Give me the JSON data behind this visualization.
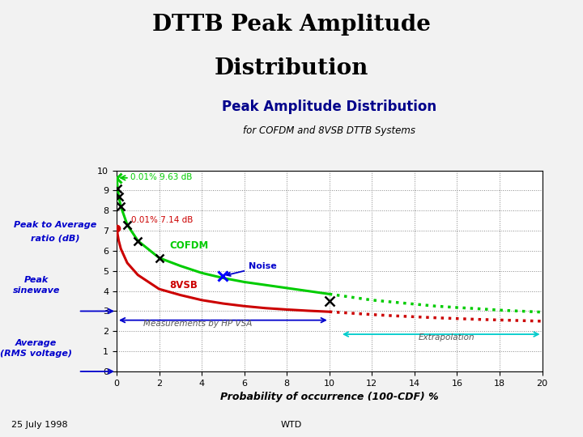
{
  "title": "Peak Amplitude Distribution",
  "subtitle": "for COFDM and 8VSB DTTB Systems",
  "xlabel": "Probability of occurrence (100-CDF) %",
  "xlim": [
    0,
    20
  ],
  "ylim": [
    0,
    10
  ],
  "xticks": [
    0,
    2,
    4,
    6,
    8,
    10,
    12,
    14,
    16,
    18,
    20
  ],
  "yticks": [
    0,
    1,
    2,
    3,
    4,
    5,
    6,
    7,
    8,
    9,
    10
  ],
  "title_color": "#00008B",
  "cofdm_color": "#00CC00",
  "vsb8_color": "#CC0000",
  "cofdm_solid_x": [
    0.01,
    0.05,
    0.1,
    0.2,
    0.5,
    1.0,
    2.0,
    3.0,
    4.0,
    5.0,
    6.0,
    7.0,
    8.0,
    9.0,
    10.0
  ],
  "cofdm_solid_y": [
    9.63,
    9.1,
    8.7,
    8.2,
    7.3,
    6.5,
    5.65,
    5.25,
    4.9,
    4.65,
    4.45,
    4.3,
    4.15,
    4.0,
    3.85
  ],
  "cofdm_dot_x": [
    10.0,
    11.0,
    12.0,
    13.0,
    14.0,
    15.0,
    16.0,
    17.0,
    18.0,
    19.0,
    20.0
  ],
  "cofdm_dot_y": [
    3.85,
    3.7,
    3.55,
    3.45,
    3.35,
    3.25,
    3.18,
    3.12,
    3.05,
    3.0,
    2.95
  ],
  "vsb8_solid_x": [
    0.01,
    0.05,
    0.1,
    0.2,
    0.5,
    1.0,
    2.0,
    3.0,
    4.0,
    5.0,
    6.0,
    7.0,
    8.0,
    9.0,
    10.0
  ],
  "vsb8_solid_y": [
    7.14,
    6.8,
    6.5,
    6.1,
    5.4,
    4.8,
    4.1,
    3.8,
    3.55,
    3.38,
    3.25,
    3.15,
    3.08,
    3.02,
    2.97
  ],
  "vsb8_dot_x": [
    10.0,
    11.0,
    12.0,
    13.0,
    14.0,
    15.0,
    16.0,
    17.0,
    18.0,
    19.0,
    20.0
  ],
  "vsb8_dot_y": [
    2.97,
    2.9,
    2.83,
    2.77,
    2.72,
    2.67,
    2.63,
    2.59,
    2.56,
    2.53,
    2.5
  ],
  "footer_text_left": "25 July 1998",
  "footer_text_right": "WTD",
  "header_title_line1": "DTTB Peak Amplitude",
  "header_title_line2": "Distribution",
  "blue_label_color": "#0000CC",
  "cyan_arrow_color": "#00CCCC",
  "meas_arrow_color": "#0000CC"
}
